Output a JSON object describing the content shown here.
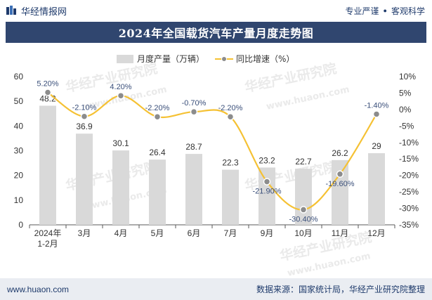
{
  "header": {
    "brand": "华经情报网",
    "tagline_1": "专业严谨",
    "tagline_2": "客观科学"
  },
  "title": "2024年全国载货汽车产量月度走势图",
  "footer": {
    "url": "www.huaon.com",
    "source": "数据来源：国家统计局，华经产业研究院整理"
  },
  "watermarks": [
    "华经产业研究院",
    "www.huaon.com"
  ],
  "colors": {
    "bar": "#d9d9d9",
    "line": "#f5c133",
    "marker_fill": "#8c8c8c",
    "marker_stroke": "#ffffff",
    "title_bg": "#30466f",
    "footer_bg": "#eaedf2",
    "brand_text": "#1e3a6b"
  },
  "chart_data": {
    "type": "bar+line",
    "title": "2024年全国载货汽车产量月度走势图",
    "categories": [
      "2024年\n1-2月",
      "3月",
      "4月",
      "5月",
      "6月",
      "7月",
      "9月",
      "10月",
      "11月",
      "12月"
    ],
    "series": [
      {
        "name": "月度产量（万辆）",
        "type": "bar",
        "axis": "left",
        "values": [
          48.2,
          36.9,
          30.1,
          26.4,
          28.7,
          22.3,
          23.2,
          22.7,
          26.2,
          29
        ],
        "labels": [
          "48.2",
          "36.9",
          "30.1",
          "26.4",
          "28.7",
          "22.3",
          "23.2",
          "22.7",
          "26.2",
          "29"
        ]
      },
      {
        "name": "同比增速（%）",
        "type": "line",
        "axis": "right",
        "values": [
          5.2,
          -2.1,
          4.2,
          -2.2,
          -0.7,
          -2.2,
          -21.9,
          -30.4,
          -19.6,
          -1.4
        ],
        "labels": [
          "5.20%",
          "-2.10%",
          "4.20%",
          "-2.20%",
          "-0.70%",
          "-2.20%",
          "-21.90%",
          "-30.40%",
          "-19.60%",
          "-1.40%"
        ]
      }
    ],
    "y_left": {
      "min": 0,
      "max": 60,
      "ticks": [
        0,
        10,
        20,
        30,
        40,
        50,
        60
      ],
      "tick_labels": [
        "0",
        "10",
        "20",
        "30",
        "40",
        "50",
        "60"
      ]
    },
    "y_right": {
      "min": -35,
      "max": 10,
      "ticks": [
        10,
        5,
        0,
        -5,
        -10,
        -15,
        -20,
        -25,
        -30,
        -35
      ],
      "tick_labels": [
        "10%",
        "5%",
        "0%",
        "-5%",
        "-10%",
        "-15%",
        "-20%",
        "-25%",
        "-30%",
        "-35%"
      ]
    },
    "legend_position": "top",
    "grid": false
  }
}
